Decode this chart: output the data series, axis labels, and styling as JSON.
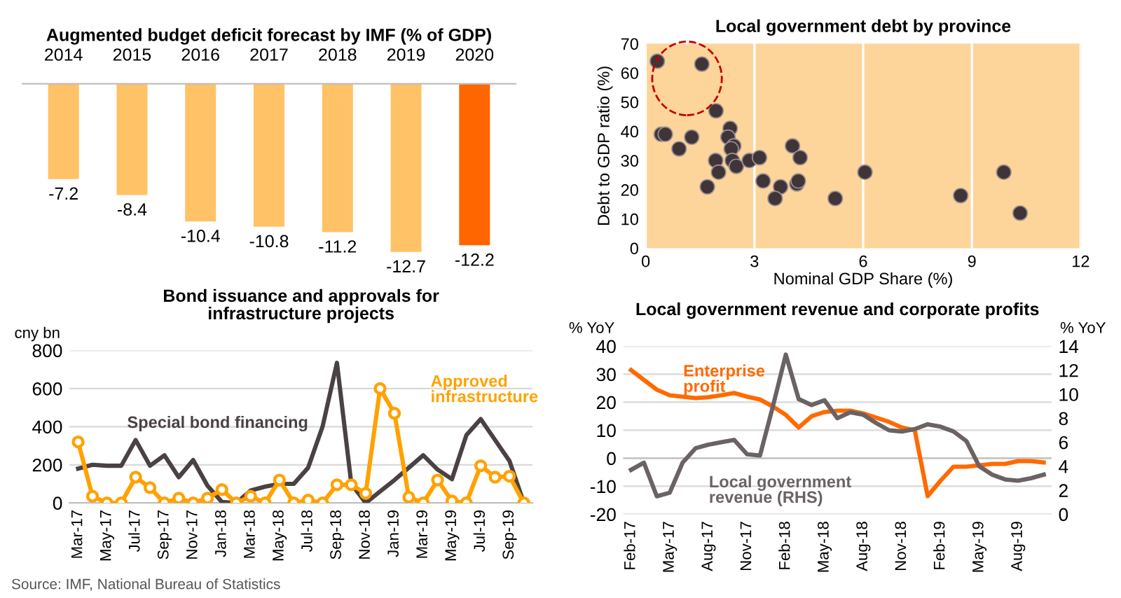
{
  "chart_data": [
    {
      "type": "bar",
      "title": "Augmented budget deficit forecast by IMF (% of GDP)",
      "categories": [
        "2014",
        "2015",
        "2016",
        "2017",
        "2018",
        "2019",
        "2020"
      ],
      "values": [
        -7.2,
        -8.4,
        -10.4,
        -10.8,
        -11.2,
        -12.7,
        -12.2
      ],
      "colors": [
        "#ffc266",
        "#ffc266",
        "#ffc266",
        "#ffc266",
        "#ffc266",
        "#ffc266",
        "#ff6600"
      ],
      "data_labels": true,
      "tick_labels": "x",
      "grid": false,
      "legend": false
    },
    {
      "type": "scatter",
      "title": "Local government debt by province",
      "xlabel": "Nominal GDP Share (%)",
      "ylabel": "Debt to GDP ratio (%)",
      "x": [
        0.32,
        1.55,
        1.94,
        0.43,
        0.54,
        1.27,
        0.92,
        2.33,
        2.27,
        2.43,
        2.36,
        1.93,
        2.39,
        2.5,
        2.01,
        1.7,
        2.86,
        3.14,
        3.24,
        3.72,
        3.57,
        4.05,
        4.26,
        4.17,
        4.21,
        5.23,
        6.05,
        8.69,
        9.88,
        10.33
      ],
      "values": [
        64,
        63,
        47,
        39,
        39,
        38,
        34,
        41,
        38,
        35,
        34,
        30,
        30,
        28,
        26,
        21,
        30,
        31,
        23,
        21,
        17,
        35,
        31,
        22,
        23,
        17,
        26,
        18,
        26,
        12
      ],
      "color": "#3f3539",
      "xlim": [
        0,
        12
      ],
      "xticks": [
        0,
        3,
        6,
        9,
        12
      ],
      "ylim": [
        0,
        70
      ],
      "yticks": [
        0,
        10,
        20,
        30,
        40,
        50,
        60,
        70
      ],
      "grid": "x",
      "marker": "circle",
      "legend": false
    },
    {
      "type": "line",
      "title": "Bond issuance and approvals for\ninfrastructure projects",
      "ylabel": "cny bn",
      "categories": [
        "Mar-17",
        null,
        "May-17",
        null,
        "Jul-17",
        null,
        "Sep-17",
        null,
        "Nov-17",
        null,
        "Jan-18",
        null,
        "Mar-18",
        null,
        "May-18",
        null,
        "Jul-18",
        null,
        "Sep-18",
        null,
        "Nov-18",
        null,
        "Jan-19",
        null,
        "Mar-19",
        null,
        "May-19",
        null,
        "Jul-19",
        null,
        "Sep-19",
        null
      ],
      "series": [
        {
          "name": "Special bond financing",
          "color": "#4a4143",
          "marker": "none",
          "values": [
            180,
            200,
            195,
            195,
            330,
            195,
            250,
            135,
            225,
            90,
            5,
            0,
            65,
            85,
            100,
            100,
            185,
            400,
            735,
            100,
            0,
            60,
            120,
            185,
            250,
            175,
            125,
            355,
            440,
            330,
            220,
            0
          ]
        },
        {
          "name": "Approved\ninfrastructure",
          "color": "#ffa200",
          "marker": "circle",
          "values": [
            320,
            35,
            0,
            0,
            135,
            80,
            0,
            25,
            0,
            25,
            70,
            0,
            35,
            0,
            120,
            0,
            15,
            0,
            95,
            95,
            50,
            600,
            470,
            30,
            0,
            120,
            10,
            0,
            195,
            135,
            140,
            0
          ]
        }
      ],
      "ylim": [
        0,
        800
      ],
      "yticks": [
        0,
        200,
        400,
        600,
        800
      ],
      "grid": "y",
      "legend": false,
      "annotations": [
        "Source: IMF, National Bureau of Statistics"
      ]
    },
    {
      "type": "line",
      "title": "Local government revenue and corporate profits",
      "ylabel": "% YoY",
      "y2label": "% YoY",
      "categories": [
        "Feb-17",
        null,
        null,
        "May-17",
        null,
        null,
        "Aug-17",
        null,
        null,
        "Nov-17",
        null,
        null,
        "Feb-18",
        null,
        null,
        "May-18",
        null,
        null,
        "Aug-18",
        null,
        null,
        "Nov-18",
        null,
        null,
        "Feb-19",
        null,
        null,
        "May-19",
        null,
        null,
        "Aug-19",
        null,
        null
      ],
      "series": [
        {
          "name": "Enterprise\nprofit",
          "color": "#ff6a00",
          "values": [
            31.5,
            28,
            24.5,
            22.5,
            22,
            21.5,
            21.8,
            22.5,
            23.3,
            22,
            21,
            18.5,
            15.5,
            11,
            15,
            16.5,
            17,
            17,
            16,
            14.5,
            13,
            11,
            10,
            -13.5,
            -8,
            -3,
            -3,
            -2.5,
            -2,
            -2,
            -1,
            -1,
            -1.5
          ]
        },
        {
          "name": "Local government\nrevenue (RHS)",
          "color": "#6b6264",
          "axis": "y2",
          "values": [
            3.7,
            4.3,
            1.5,
            1.8,
            4.3,
            5.5,
            5.8,
            6.0,
            6.2,
            5.0,
            4.9,
            9.0,
            13.3,
            9.6,
            9.1,
            9.5,
            8.0,
            8.5,
            8.3,
            7.6,
            7.0,
            6.9,
            7.1,
            7.5,
            7.3,
            6.9,
            6.1,
            4.0,
            3.3,
            2.9,
            2.8,
            3.0,
            3.3
          ]
        }
      ],
      "ylim": [
        -20,
        40
      ],
      "yticks": [
        -20,
        -10,
        0,
        10,
        20,
        30,
        40
      ],
      "y2lim": [
        0,
        14
      ],
      "y2ticks": [
        0,
        2,
        4,
        6,
        8,
        10,
        12,
        14
      ],
      "grid": "y",
      "legend": false
    }
  ]
}
